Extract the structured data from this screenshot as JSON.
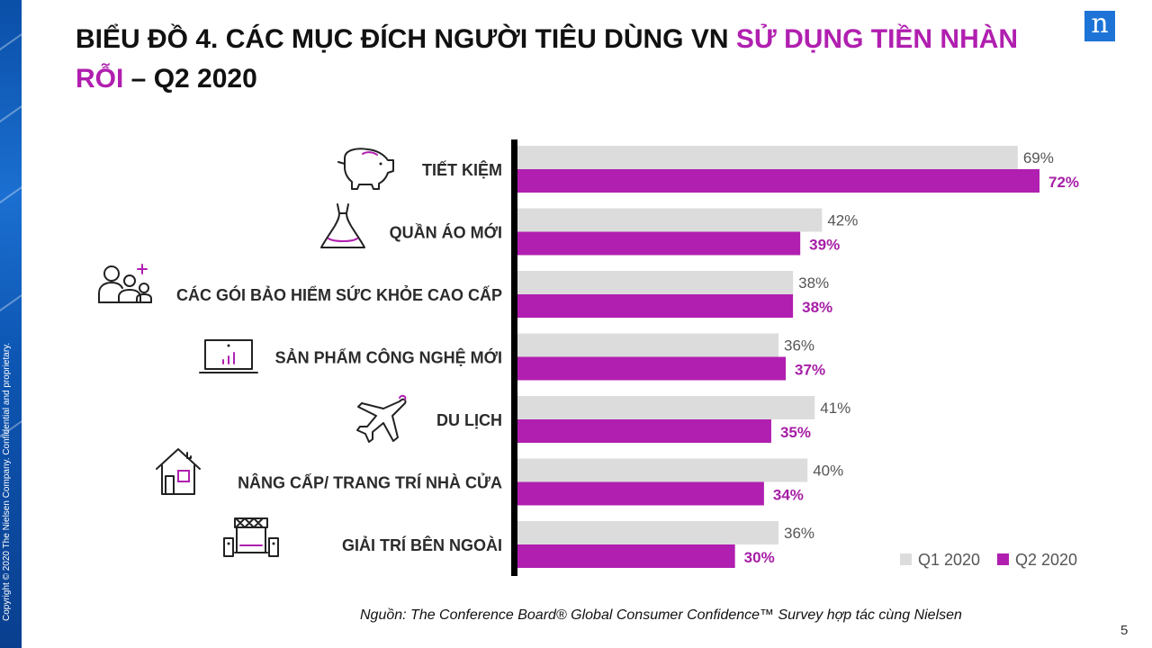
{
  "title": {
    "part1": "BIỂU ĐỒ 4. CÁC MỤC ĐÍCH NGƯỜI TIÊU DÙNG VN ",
    "highlight": "SỬ DỤNG TIỀN NHÀN RỖI",
    "part2": " – Q2 2020"
  },
  "logo_text": "n",
  "copyright": "Copyright © 2020 The Nielsen Company. Confidential and proprietary.",
  "source": "Nguồn: The Conference Board® Global Consumer Confidence™ Survey hợp tác cùng Nielsen",
  "page_number": "5",
  "colors": {
    "q1": "#dcdcdc",
    "q2": "#b01faf",
    "axis": "#000000"
  },
  "chart_data": {
    "type": "bar",
    "orientation": "horizontal",
    "categories": [
      "TIẾT KIỆM",
      "QUẦN ÁO MỚI",
      "CÁC GÓI BẢO HIỂM SỨC KHỎE CAO CẤP",
      "SẢN PHẨM CÔNG NGHỆ MỚI",
      "DU LỊCH",
      "NÂNG CẤP/ TRANG TRÍ NHÀ CỬA",
      "GIẢI TRÍ BÊN NGOÀI"
    ],
    "icons": [
      "piggy-bank-icon",
      "dress-icon",
      "family-plus-icon",
      "laptop-chart-icon",
      "airplane-icon",
      "house-icon",
      "entertainment-stage-icon"
    ],
    "series": [
      {
        "name": "Q1 2020",
        "values": [
          69,
          42,
          38,
          36,
          41,
          40,
          36
        ],
        "labels": [
          "69%",
          "42%",
          "38%",
          "36%",
          "41%",
          "40%",
          "36%"
        ]
      },
      {
        "name": "Q2 2020",
        "values": [
          72,
          39,
          38,
          37,
          35,
          34,
          30
        ],
        "labels": [
          "72%",
          "39%",
          "38%",
          "37%",
          "35%",
          "34%",
          "30%"
        ]
      }
    ],
    "unit": "%",
    "xlim": [
      0,
      72
    ],
    "legend_position": "bottom-right"
  }
}
